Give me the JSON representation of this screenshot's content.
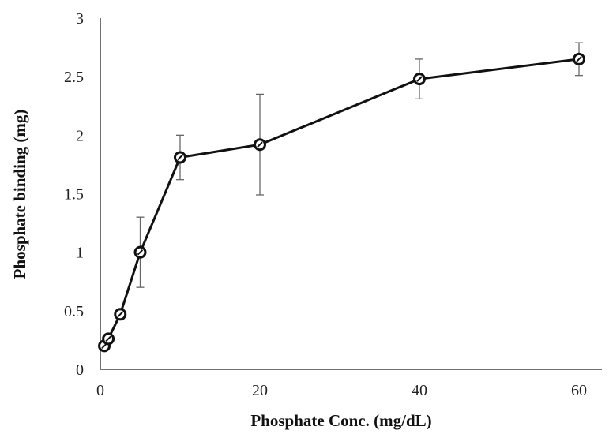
{
  "chart_data": {
    "type": "line",
    "title": "",
    "xlabel": "Phosphate Conc. (mg/dL)",
    "ylabel": "Phosphate binding (mg)",
    "xlim": [
      0,
      60
    ],
    "ylim": [
      0,
      3
    ],
    "x_ticks": [
      0,
      20,
      40,
      60
    ],
    "y_ticks": [
      0,
      0.5,
      1,
      1.5,
      2,
      2.5,
      3
    ],
    "y_tick_labels": [
      "0",
      "0.5",
      "1",
      "1.5",
      "2",
      "2.5",
      "3"
    ],
    "grid": false,
    "legend": false,
    "line_color": "#111111",
    "error_bar_color": "#666666",
    "series": [
      {
        "x": [
          0.5,
          1,
          2.5,
          5,
          10,
          20,
          40,
          60
        ],
        "y": [
          0.2,
          0.26,
          0.47,
          1.0,
          1.81,
          1.92,
          2.48,
          2.65
        ],
        "yerr": [
          0.01,
          0.01,
          0.03,
          0.3,
          0.19,
          0.43,
          0.17,
          0.14
        ]
      }
    ]
  }
}
